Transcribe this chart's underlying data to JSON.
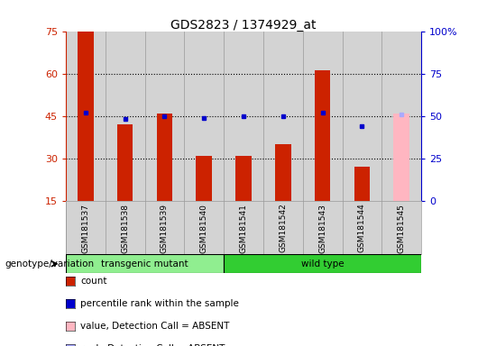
{
  "title": "GDS2823 / 1374929_at",
  "samples": [
    "GSM181537",
    "GSM181538",
    "GSM181539",
    "GSM181540",
    "GSM181541",
    "GSM181542",
    "GSM181543",
    "GSM181544",
    "GSM181545"
  ],
  "count_values": [
    75,
    42,
    46,
    31,
    31,
    35,
    61,
    27,
    null
  ],
  "percentile_values": [
    52,
    48,
    50,
    49,
    50,
    50,
    52,
    44,
    51
  ],
  "absent_bar_value": 46,
  "absent_rank_value": 51,
  "absent_index": 8,
  "ylim": [
    15,
    75
  ],
  "y_ticks": [
    15,
    30,
    45,
    60,
    75
  ],
  "y2_ticks": [
    0,
    25,
    50,
    75,
    100
  ],
  "groups": [
    {
      "label": "transgenic mutant",
      "start": 0,
      "end": 3
    },
    {
      "label": "wild type",
      "start": 4,
      "end": 8
    }
  ],
  "bar_color": "#cc2200",
  "bar_absent_color": "#ffb6c1",
  "rank_color": "#0000cc",
  "rank_absent_color": "#aaaaff",
  "group_color_transgenic": "#90ee90",
  "group_color_wildtype": "#32cd32",
  "bg_color": "#d3d3d3",
  "chart_bg": "#ffffff",
  "genotype_label": "genotype/variation",
  "legend_items": [
    {
      "label": "count",
      "color": "#cc2200"
    },
    {
      "label": "percentile rank within the sample",
      "color": "#0000cc"
    },
    {
      "label": "value, Detection Call = ABSENT",
      "color": "#ffb6c1"
    },
    {
      "label": "rank, Detection Call = ABSENT",
      "color": "#aaaaff"
    }
  ]
}
